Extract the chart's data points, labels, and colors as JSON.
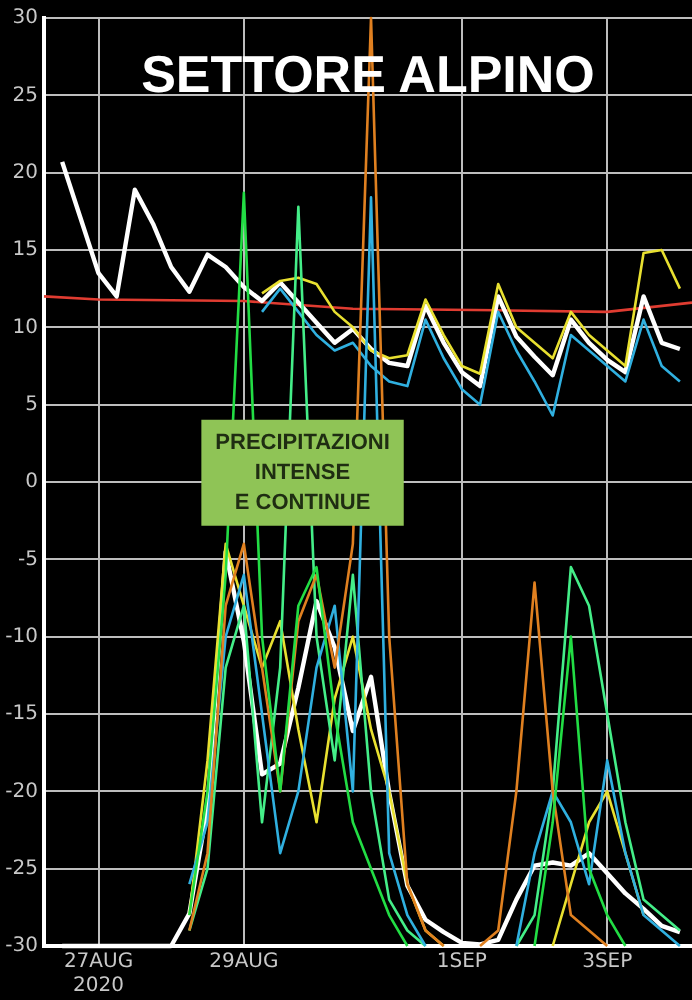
{
  "chart_data": {
    "type": "line",
    "title": "SETTORE ALPINO",
    "annotations": [
      "PRECIPITAZIONI\nINTENSE\nE CONTINUE"
    ],
    "x": [
      "2020-08-26T12:00",
      "2020-08-26T18:00",
      "2020-08-27T00:00",
      "2020-08-27T06:00",
      "2020-08-27T12:00",
      "2020-08-27T18:00",
      "2020-08-28T00:00",
      "2020-08-28T06:00",
      "2020-08-28T12:00",
      "2020-08-28T18:00",
      "2020-08-29T00:00",
      "2020-08-29T06:00",
      "2020-08-29T12:00",
      "2020-08-29T18:00",
      "2020-08-30T00:00",
      "2020-08-30T06:00",
      "2020-08-30T12:00",
      "2020-08-30T18:00",
      "2020-08-31T00:00",
      "2020-08-31T06:00",
      "2020-08-31T12:00",
      "2020-08-31T18:00",
      "2020-09-01T00:00",
      "2020-09-01T06:00",
      "2020-09-01T12:00",
      "2020-09-01T18:00",
      "2020-09-02T00:00",
      "2020-09-02T06:00",
      "2020-09-02T12:00",
      "2020-09-02T18:00",
      "2020-09-03T00:00",
      "2020-09-03T06:00",
      "2020-09-03T12:00",
      "2020-09-03T18:00",
      "2020-09-04T00:00"
    ],
    "series": [
      {
        "color": "#22dd44",
        "values": [
          null,
          null,
          null,
          null,
          null,
          null,
          null,
          -28,
          -20,
          -6,
          18.7,
          -10,
          -20,
          -8,
          -5.5,
          -15,
          -22,
          -25,
          -28,
          -30,
          null,
          null,
          null,
          null,
          null,
          null,
          -30,
          -22,
          -10,
          -25,
          -28,
          -30,
          null,
          null,
          null
        ]
      },
      {
        "color": "#e08020",
        "values": [
          null,
          null,
          null,
          null,
          null,
          null,
          null,
          -29,
          -24,
          -8,
          -4,
          -12,
          -20,
          -9,
          -6,
          -12,
          -4,
          30,
          -10,
          -26,
          -29,
          -30,
          null,
          -30,
          -29,
          -20,
          -6.5,
          -20,
          -28,
          -29,
          -30,
          null,
          null,
          null,
          null
        ]
      },
      {
        "color": "#30b0e0",
        "values": [
          null,
          null,
          null,
          null,
          null,
          null,
          null,
          -26,
          -22,
          -10,
          -6,
          -15,
          -24,
          -20,
          -12,
          -8,
          -20,
          18.4,
          -24,
          -28,
          -30,
          null,
          null,
          null,
          null,
          -30,
          -24,
          -20,
          -22,
          -26,
          -18,
          -24,
          -28,
          -29,
          -30
        ]
      },
      {
        "color": "#44ee88",
        "values": [
          null,
          null,
          null,
          null,
          null,
          null,
          null,
          -29,
          -25,
          -12,
          -8,
          -22,
          -12,
          17.8,
          -10,
          -18,
          -6,
          -20,
          -27,
          -29,
          -30,
          null,
          null,
          null,
          null,
          -30,
          -28,
          -20,
          -5.5,
          -8,
          -15,
          -22,
          -27,
          -28,
          -29
        ]
      },
      {
        "color": "#e8e030",
        "values": [
          null,
          null,
          null,
          null,
          null,
          null,
          null,
          -28,
          -18,
          -4,
          -8,
          -12,
          -9,
          -16,
          -22,
          -14,
          -10,
          -16,
          -20,
          -26,
          -29,
          -30,
          null,
          null,
          null,
          null,
          null,
          -30,
          -26,
          -22,
          -20,
          -24,
          -28,
          null,
          null
        ]
      },
      {
        "color": "#e8e030",
        "values": [
          null,
          null,
          null,
          null,
          null,
          null,
          null,
          null,
          null,
          null,
          null,
          12.2,
          13.0,
          13.2,
          12.8,
          11.0,
          10.0,
          8.5,
          8.0,
          8.2,
          11.8,
          9.5,
          7.5,
          7.0,
          12.8,
          10.0,
          9.0,
          8.0,
          11.0,
          9.5,
          8.5,
          7.5,
          14.8,
          15.0,
          12.5
        ]
      },
      {
        "color": "#30b0e0",
        "values": [
          null,
          null,
          null,
          null,
          null,
          null,
          null,
          null,
          null,
          null,
          null,
          11.0,
          12.5,
          11.0,
          9.5,
          8.5,
          9.0,
          7.5,
          6.5,
          6.2,
          10.5,
          8.0,
          6.0,
          5.0,
          11.0,
          8.5,
          6.5,
          4.3,
          9.5,
          8.5,
          7.5,
          6.5,
          10.5,
          7.5,
          6.5
        ]
      },
      {
        "color": "#ffffff",
        "values": [
          -30,
          -30,
          -30,
          -30,
          -30,
          -30,
          -30,
          -27.9,
          -21.0,
          -4.5,
          -10.3,
          -18.9,
          -18.2,
          -13.3,
          -7.7,
          -10.7,
          -16.1,
          -12.6,
          -20.1,
          -26.1,
          -28.3,
          -29.1,
          -29.8,
          -29.9,
          -29.6,
          -27.0,
          -24.8,
          -24.6,
          -24.8,
          -24.0,
          -25.3,
          -26.6,
          -27.6,
          -28.7,
          -29.1
        ]
      },
      {
        "color": "#ffffff",
        "values": [
          20.7,
          17.1,
          13.5,
          12.0,
          18.9,
          16.7,
          13.9,
          12.3,
          14.7,
          13.9,
          12.6,
          11.7,
          12.9,
          11.6,
          10.3,
          9.0,
          9.9,
          8.6,
          7.7,
          7.5,
          11.4,
          9.0,
          7.1,
          6.2,
          12.0,
          9.4,
          8.1,
          6.9,
          10.5,
          9.0,
          7.9,
          7.1,
          12.0,
          9.0,
          8.6
        ]
      },
      {
        "color": "#e03c31",
        "x": [
          "2020-08-26T06:00",
          "2020-08-27T00:00",
          "2020-08-29T00:00",
          "2020-08-30T12:00",
          "2020-09-01T12:00",
          "2020-09-03T00:00",
          "2020-09-04T04:00"
        ],
        "values": [
          12.0,
          11.8,
          11.7,
          11.2,
          11.1,
          11.0,
          11.6
        ]
      }
    ],
    "xlim": [
      "2020-08-26T06:00",
      "2020-09-04T04:00"
    ],
    "xticks": [
      {
        "value": "2020-08-27",
        "label": "27AUG\n2020"
      },
      {
        "value": "2020-08-29",
        "label": "29AUG"
      },
      {
        "value": "2020-09-01",
        "label": "1SEP"
      },
      {
        "value": "2020-09-03",
        "label": "3SEP"
      }
    ],
    "ylim": [
      -30,
      30
    ],
    "yticks": [
      -30,
      -25,
      -20,
      -15,
      -10,
      -5,
      0,
      5,
      10,
      15,
      20,
      25,
      30
    ],
    "grid": true,
    "legend": false,
    "marker": "none",
    "line_style": "solid"
  }
}
